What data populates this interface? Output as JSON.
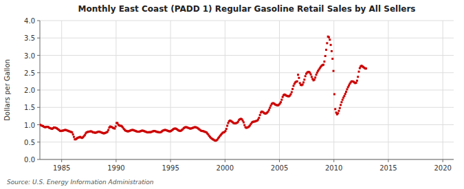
{
  "chart_data": {
    "type": "scatter",
    "title": "Monthly East Coast (PADD 1) Regular Gasoline Retail Sales by All Sellers",
    "ylabel": "Dollars per Gallon",
    "annotations": [
      "Source: U.S. Energy Information Administration"
    ],
    "color": "#cc0000",
    "marker": "square",
    "grid": true,
    "xlim": [
      1983,
      2021
    ],
    "ylim": [
      0.0,
      4.0
    ],
    "xticks": [
      1985,
      1990,
      1995,
      2000,
      2005,
      2010,
      2015,
      2020
    ],
    "yticks": [
      {
        "value": 0.0,
        "label": "0.0"
      },
      0.5,
      {
        "value": 1.0,
        "label": "1.0"
      },
      1.5,
      {
        "value": 2.0,
        "label": "2.0"
      },
      2.5,
      {
        "value": 3.0,
        "label": "3.0"
      },
      3.5,
      {
        "value": 4.0,
        "label": "4.0"
      }
    ],
    "x": [
      1983.041667,
      1983.125,
      1983.208333,
      1983.291667,
      1983.375,
      1983.458333,
      1983.541667,
      1983.625,
      1983.708333,
      1983.791667,
      1983.875,
      1983.958333,
      1984.041667,
      1984.125,
      1984.208333,
      1984.291667,
      1984.375,
      1984.458333,
      1984.541667,
      1984.625,
      1984.708333,
      1984.791667,
      1984.875,
      1984.958333,
      1985.041667,
      1985.125,
      1985.208333,
      1985.291667,
      1985.375,
      1985.458333,
      1985.541667,
      1985.625,
      1985.708333,
      1985.791667,
      1985.875,
      1985.958333,
      1986.041667,
      1986.125,
      1986.208333,
      1986.291667,
      1986.375,
      1986.458333,
      1986.541667,
      1986.625,
      1986.708333,
      1986.791667,
      1986.875,
      1986.958333,
      1987.041667,
      1987.125,
      1987.208333,
      1987.291667,
      1987.375,
      1987.458333,
      1987.541667,
      1987.625,
      1987.708333,
      1987.791667,
      1987.875,
      1987.958333,
      1988.041667,
      1988.125,
      1988.208333,
      1988.291667,
      1988.375,
      1988.458333,
      1988.541667,
      1988.625,
      1988.708333,
      1988.791667,
      1988.875,
      1988.958333,
      1989.041667,
      1989.125,
      1989.208333,
      1989.291667,
      1989.375,
      1989.458333,
      1989.541667,
      1989.625,
      1989.708333,
      1989.791667,
      1989.875,
      1989.958333,
      1990.041667,
      1990.125,
      1990.208333,
      1990.291667,
      1990.375,
      1990.458333,
      1990.541667,
      1990.625,
      1990.708333,
      1990.791667,
      1990.875,
      1990.958333,
      1991.041667,
      1991.125,
      1991.208333,
      1991.291667,
      1991.375,
      1991.458333,
      1991.541667,
      1991.625,
      1991.708333,
      1991.791667,
      1991.875,
      1991.958333,
      1992.041667,
      1992.125,
      1992.208333,
      1992.291667,
      1992.375,
      1992.458333,
      1992.541667,
      1992.625,
      1992.708333,
      1992.791667,
      1992.875,
      1992.958333,
      1993.041667,
      1993.125,
      1993.208333,
      1993.291667,
      1993.375,
      1993.458333,
      1993.541667,
      1993.625,
      1993.708333,
      1993.791667,
      1993.875,
      1993.958333,
      1994.041667,
      1994.125,
      1994.208333,
      1994.291667,
      1994.375,
      1994.458333,
      1994.541667,
      1994.625,
      1994.708333,
      1994.791667,
      1994.875,
      1994.958333,
      1995.041667,
      1995.125,
      1995.208333,
      1995.291667,
      1995.375,
      1995.458333,
      1995.541667,
      1995.625,
      1995.708333,
      1995.791667,
      1995.875,
      1995.958333,
      1996.041667,
      1996.125,
      1996.208333,
      1996.291667,
      1996.375,
      1996.458333,
      1996.541667,
      1996.625,
      1996.708333,
      1996.791667,
      1996.875,
      1996.958333,
      1997.041667,
      1997.125,
      1997.208333,
      1997.291667,
      1997.375,
      1997.458333,
      1997.541667,
      1997.625,
      1997.708333,
      1997.791667,
      1997.875,
      1997.958333,
      1998.041667,
      1998.125,
      1998.208333,
      1998.291667,
      1998.375,
      1998.458333,
      1998.541667,
      1998.625,
      1998.708333,
      1998.791667,
      1998.875,
      1998.958333,
      1999.041667,
      1999.125,
      1999.208333,
      1999.291667,
      1999.375,
      1999.458333,
      1999.541667,
      1999.625,
      1999.708333,
      1999.791667,
      1999.875,
      1999.958333,
      2000.041667,
      2000.125,
      2000.208333,
      2000.291667,
      2000.375,
      2000.458333,
      2000.541667,
      2000.625,
      2000.708333,
      2000.791667,
      2000.875,
      2000.958333,
      2001.041667,
      2001.125,
      2001.208333,
      2001.291667,
      2001.375,
      2001.458333,
      2001.541667,
      2001.625,
      2001.708333,
      2001.791667,
      2001.875,
      2001.958333,
      2002.041667,
      2002.125,
      2002.208333,
      2002.291667,
      2002.375,
      2002.458333,
      2002.541667,
      2002.625,
      2002.708333,
      2002.791667,
      2002.875,
      2002.958333,
      2003.041667,
      2003.125,
      2003.208333,
      2003.291667,
      2003.375,
      2003.458333,
      2003.541667,
      2003.625,
      2003.708333,
      2003.791667,
      2003.875,
      2003.958333,
      2004.041667,
      2004.125,
      2004.208333,
      2004.291667,
      2004.375,
      2004.458333,
      2004.541667,
      2004.625,
      2004.708333,
      2004.791667,
      2004.875,
      2004.958333,
      2005.041667,
      2005.125,
      2005.208333,
      2005.291667,
      2005.375,
      2005.458333,
      2005.541667,
      2005.625,
      2005.708333,
      2005.791667,
      2005.875,
      2005.958333,
      2006.041667,
      2006.125,
      2006.208333,
      2006.291667,
      2006.375,
      2006.458333,
      2006.541667,
      2006.625,
      2006.708333,
      2006.791667,
      2006.875,
      2006.958333,
      2007.041667,
      2007.125,
      2007.208333,
      2007.291667,
      2007.375,
      2007.458333,
      2007.541667,
      2007.625,
      2007.708333,
      2007.791667,
      2007.875,
      2007.958333,
      2008.041667,
      2008.125,
      2008.208333,
      2008.291667,
      2008.375,
      2008.458333,
      2008.541667,
      2008.625,
      2008.708333,
      2008.791667,
      2008.875,
      2008.958333,
      2009.041667,
      2009.125,
      2009.208333,
      2009.291667,
      2009.375,
      2009.458333,
      2009.541667,
      2009.625,
      2009.708333,
      2009.791667,
      2009.875,
      2009.958333,
      2010.041667,
      2010.125,
      2010.208333,
      2010.291667,
      2010.375,
      2010.458333,
      2010.541667,
      2010.625,
      2010.708333,
      2010.791667,
      2010.875,
      2010.958333,
      2011.041667,
      2011.125,
      2011.208333,
      2011.291667,
      2011.375,
      2011.458333,
      2011.541667,
      2011.625,
      2011.708333,
      2011.791667,
      2011.875,
      2011.958333,
      2012.041667,
      2012.125,
      2012.208333,
      2012.291667,
      2012.375,
      2012.458333,
      2012.541667,
      2012.625,
      2012.708333,
      2012.791667,
      2012.875,
      2012.958333
    ],
    "values": [
      1.0,
      0.98,
      0.97,
      0.96,
      0.94,
      0.93,
      0.93,
      0.94,
      0.94,
      0.93,
      0.91,
      0.9,
      0.89,
      0.88,
      0.9,
      0.92,
      0.92,
      0.91,
      0.9,
      0.88,
      0.86,
      0.84,
      0.82,
      0.82,
      0.83,
      0.83,
      0.84,
      0.85,
      0.85,
      0.84,
      0.83,
      0.82,
      0.81,
      0.8,
      0.79,
      0.78,
      0.72,
      0.65,
      0.58,
      0.58,
      0.6,
      0.62,
      0.63,
      0.64,
      0.65,
      0.63,
      0.62,
      0.64,
      0.67,
      0.7,
      0.75,
      0.78,
      0.79,
      0.8,
      0.8,
      0.81,
      0.81,
      0.8,
      0.78,
      0.78,
      0.77,
      0.77,
      0.78,
      0.79,
      0.8,
      0.8,
      0.79,
      0.78,
      0.77,
      0.76,
      0.75,
      0.76,
      0.77,
      0.78,
      0.8,
      0.85,
      0.92,
      0.95,
      0.94,
      0.93,
      0.91,
      0.9,
      0.89,
      0.95,
      1.05,
      1.05,
      1.0,
      0.98,
      0.97,
      0.97,
      0.95,
      0.92,
      0.88,
      0.85,
      0.83,
      0.82,
      0.81,
      0.81,
      0.82,
      0.83,
      0.84,
      0.85,
      0.85,
      0.84,
      0.83,
      0.82,
      0.81,
      0.8,
      0.8,
      0.8,
      0.81,
      0.82,
      0.83,
      0.83,
      0.82,
      0.81,
      0.8,
      0.79,
      0.78,
      0.78,
      0.79,
      0.78,
      0.79,
      0.8,
      0.81,
      0.82,
      0.82,
      0.81,
      0.8,
      0.79,
      0.79,
      0.78,
      0.78,
      0.79,
      0.81,
      0.83,
      0.84,
      0.85,
      0.85,
      0.84,
      0.83,
      0.82,
      0.81,
      0.81,
      0.82,
      0.84,
      0.86,
      0.88,
      0.89,
      0.89,
      0.88,
      0.86,
      0.84,
      0.83,
      0.82,
      0.83,
      0.85,
      0.87,
      0.9,
      0.92,
      0.93,
      0.93,
      0.92,
      0.91,
      0.9,
      0.89,
      0.89,
      0.9,
      0.91,
      0.92,
      0.93,
      0.93,
      0.92,
      0.91,
      0.89,
      0.87,
      0.85,
      0.83,
      0.82,
      0.82,
      0.81,
      0.8,
      0.79,
      0.78,
      0.75,
      0.72,
      0.68,
      0.65,
      0.62,
      0.6,
      0.58,
      0.57,
      0.55,
      0.54,
      0.55,
      0.57,
      0.61,
      0.64,
      0.68,
      0.71,
      0.74,
      0.77,
      0.78,
      0.79,
      0.82,
      0.88,
      0.97,
      1.05,
      1.1,
      1.12,
      1.11,
      1.09,
      1.07,
      1.05,
      1.04,
      1.04,
      1.05,
      1.06,
      1.09,
      1.14,
      1.16,
      1.17,
      1.16,
      1.12,
      1.07,
      0.99,
      0.93,
      0.91,
      0.92,
      0.93,
      0.95,
      0.98,
      1.02,
      1.06,
      1.08,
      1.09,
      1.09,
      1.1,
      1.11,
      1.12,
      1.15,
      1.2,
      1.28,
      1.35,
      1.38,
      1.37,
      1.35,
      1.33,
      1.32,
      1.33,
      1.35,
      1.38,
      1.43,
      1.49,
      1.55,
      1.6,
      1.62,
      1.62,
      1.6,
      1.58,
      1.57,
      1.56,
      1.56,
      1.58,
      1.61,
      1.65,
      1.72,
      1.8,
      1.85,
      1.87,
      1.86,
      1.84,
      1.83,
      1.82,
      1.82,
      1.84,
      1.88,
      1.94,
      2.03,
      2.12,
      2.18,
      2.22,
      2.24,
      2.25,
      2.44,
      2.35,
      2.2,
      2.15,
      2.14,
      2.16,
      2.22,
      2.3,
      2.4,
      2.47,
      2.5,
      2.52,
      2.52,
      2.5,
      2.45,
      2.38,
      2.32,
      2.28,
      2.3,
      2.36,
      2.44,
      2.5,
      2.55,
      2.59,
      2.63,
      2.67,
      2.7,
      2.72,
      2.73,
      2.82,
      2.98,
      3.16,
      3.35,
      3.54,
      3.52,
      3.45,
      3.3,
      3.12,
      2.9,
      2.55,
      1.88,
      1.45,
      1.35,
      1.3,
      1.33,
      1.4,
      1.48,
      1.57,
      1.65,
      1.72,
      1.78,
      1.83,
      1.89,
      1.95,
      2.02,
      2.08,
      2.13,
      2.18,
      2.22,
      2.25,
      2.25,
      2.24,
      2.22,
      2.2,
      2.21,
      2.27,
      2.38,
      2.53,
      2.63,
      2.68,
      2.7,
      2.68,
      2.66,
      2.64,
      2.62,
      2.62
    ]
  }
}
